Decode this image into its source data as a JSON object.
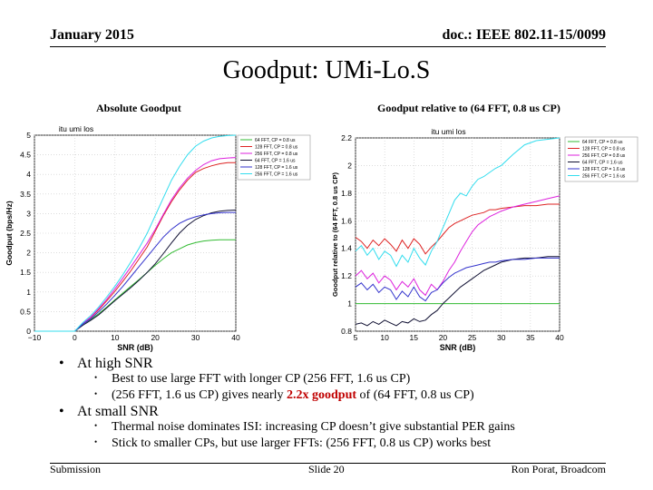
{
  "header": {
    "date": "January 2015",
    "doc": "doc.: IEEE 802.11-15/0099"
  },
  "title": "Goodput: UMi-Lo.S",
  "captions": {
    "left": "Absolute Goodput",
    "right": "Goodput relative to (64 FFT, 0.8 us CP)"
  },
  "bullets": [
    {
      "text": "At high SNR",
      "sub": [
        {
          "text": "Best to use large FFT with longer CP (256 FFT, 1.6 us CP)"
        },
        {
          "pre": "(256 FFT, 1.6 us CP) gives nearly ",
          "highlight": "2.2x goodput",
          "post": " of (64 FFT, 0.8 us CP)"
        }
      ]
    },
    {
      "text": "At small SNR",
      "sub": [
        {
          "text": "Thermal noise dominates ISI: increasing CP doesn’t give substantial PER gains"
        },
        {
          "text": "Stick to smaller CPs, but use larger FFTs: (256 FFT, 0.8 us CP) works best"
        }
      ]
    }
  ],
  "footer": {
    "left": "Submission",
    "center": "Slide 20",
    "right": "Ron Porat, Broadcom"
  },
  "chart_data": [
    {
      "type": "line",
      "title": "itu umi los",
      "xlabel": "SNR (dB)",
      "ylabel": "Goodput (bps/Hz)",
      "xlim": [
        -10,
        40
      ],
      "ylim": [
        0,
        5
      ],
      "xticks": [
        -10,
        0,
        10,
        20,
        30,
        40
      ],
      "xtick_labels": [
        "−10",
        "0",
        "10",
        "20",
        "30",
        "40"
      ],
      "yticks": [
        0,
        0.5,
        1,
        1.5,
        2,
        2.5,
        3,
        3.5,
        4,
        4.5,
        5
      ],
      "ytick_labels": [
        "0",
        "0.5",
        "1",
        "1.5",
        "2",
        "2.5",
        "3",
        "3.5",
        "4",
        "4.5",
        "5"
      ],
      "grid": true,
      "legend": "top-right",
      "x": [
        -10,
        -5,
        0,
        2,
        4,
        6,
        8,
        10,
        12,
        14,
        16,
        18,
        20,
        22,
        24,
        26,
        28,
        30,
        32,
        34,
        36,
        38,
        40
      ],
      "series": [
        {
          "name": "64 FFT, CP = 0.8 us",
          "color": "#33bb33",
          "values": [
            0,
            0,
            0,
            0.18,
            0.3,
            0.45,
            0.62,
            0.8,
            0.98,
            1.15,
            1.32,
            1.5,
            1.68,
            1.85,
            2.0,
            2.1,
            2.2,
            2.26,
            2.3,
            2.32,
            2.33,
            2.33,
            2.33
          ]
        },
        {
          "name": "128 FFT, CP = 0.8 us",
          "color": "#dd2222",
          "values": [
            0,
            0,
            0,
            0.2,
            0.35,
            0.55,
            0.78,
            1.02,
            1.28,
            1.55,
            1.85,
            2.15,
            2.55,
            2.95,
            3.3,
            3.6,
            3.85,
            4.05,
            4.15,
            4.22,
            4.27,
            4.3,
            4.3
          ]
        },
        {
          "name": "256 FFT, CP = 0.8 us",
          "color": "#dd22dd",
          "values": [
            0,
            0,
            0,
            0.2,
            0.36,
            0.58,
            0.82,
            1.08,
            1.36,
            1.65,
            1.95,
            2.25,
            2.6,
            2.98,
            3.35,
            3.65,
            3.9,
            4.1,
            4.25,
            4.35,
            4.4,
            4.42,
            4.43
          ]
        },
        {
          "name": "64 FFT, CP = 1.6 us",
          "color": "#111133",
          "values": [
            0,
            0,
            0,
            0.15,
            0.28,
            0.42,
            0.6,
            0.78,
            0.95,
            1.12,
            1.3,
            1.5,
            1.72,
            1.98,
            2.25,
            2.5,
            2.7,
            2.85,
            2.95,
            3.02,
            3.06,
            3.08,
            3.09
          ]
        },
        {
          "name": "128 FFT, CP = 1.6 us",
          "color": "#3333cc",
          "values": [
            0,
            0,
            0,
            0.18,
            0.32,
            0.5,
            0.7,
            0.92,
            1.15,
            1.4,
            1.65,
            1.9,
            2.15,
            2.4,
            2.6,
            2.75,
            2.85,
            2.92,
            2.97,
            3.0,
            3.02,
            3.03,
            3.03
          ]
        },
        {
          "name": "256 FFT, CP = 1.6 us",
          "color": "#33ddee",
          "values": [
            0,
            0,
            0,
            0.22,
            0.4,
            0.62,
            0.88,
            1.15,
            1.45,
            1.78,
            2.12,
            2.5,
            2.95,
            3.4,
            3.85,
            4.2,
            4.5,
            4.72,
            4.85,
            4.93,
            4.97,
            4.99,
            5.0
          ]
        }
      ]
    },
    {
      "type": "line",
      "title": "itu umi los",
      "xlabel": "SNR (dB)",
      "ylabel": "Goodput relative to (64 FFT, 0.8 us CP)",
      "xlim": [
        5,
        40
      ],
      "ylim": [
        0.8,
        2.2
      ],
      "xticks": [
        5,
        10,
        15,
        20,
        25,
        30,
        35,
        40
      ],
      "xtick_labels": [
        "5",
        "10",
        "15",
        "20",
        "25",
        "30",
        "35",
        "40"
      ],
      "yticks": [
        0.8,
        1,
        1.2,
        1.4,
        1.6,
        1.8,
        2,
        2.2
      ],
      "ytick_labels": [
        "0.8",
        "1",
        "1.2",
        "1.4",
        "1.6",
        "1.8",
        "2",
        "2.2"
      ],
      "grid": true,
      "legend": "top-right",
      "x": [
        5,
        6,
        7,
        8,
        9,
        10,
        11,
        12,
        13,
        14,
        15,
        16,
        17,
        18,
        19,
        20,
        21,
        22,
        23,
        24,
        25,
        26,
        27,
        28,
        29,
        30,
        32,
        34,
        36,
        38,
        40
      ],
      "series": [
        {
          "name": "64 FFT, CP = 0.8 us",
          "color": "#33bb33",
          "values": [
            1,
            1,
            1,
            1,
            1,
            1,
            1,
            1,
            1,
            1,
            1,
            1,
            1,
            1,
            1,
            1,
            1,
            1,
            1,
            1,
            1,
            1,
            1,
            1,
            1,
            1,
            1,
            1,
            1,
            1,
            1
          ]
        },
        {
          "name": "128 FFT, CP = 0.8 us",
          "color": "#dd2222",
          "values": [
            1.48,
            1.45,
            1.4,
            1.46,
            1.42,
            1.47,
            1.43,
            1.38,
            1.46,
            1.4,
            1.47,
            1.43,
            1.36,
            1.41,
            1.45,
            1.5,
            1.55,
            1.58,
            1.6,
            1.62,
            1.64,
            1.65,
            1.66,
            1.68,
            1.68,
            1.69,
            1.7,
            1.71,
            1.71,
            1.72,
            1.72
          ]
        },
        {
          "name": "256 FFT, CP = 0.8 us",
          "color": "#dd22dd",
          "values": [
            1.2,
            1.24,
            1.18,
            1.22,
            1.15,
            1.2,
            1.17,
            1.1,
            1.16,
            1.12,
            1.18,
            1.1,
            1.06,
            1.14,
            1.1,
            1.16,
            1.24,
            1.3,
            1.38,
            1.45,
            1.52,
            1.57,
            1.6,
            1.63,
            1.65,
            1.67,
            1.7,
            1.72,
            1.74,
            1.76,
            1.78
          ]
        },
        {
          "name": "64 FFT, CP = 1.6 us",
          "color": "#111133",
          "values": [
            0.85,
            0.86,
            0.84,
            0.87,
            0.85,
            0.88,
            0.86,
            0.84,
            0.87,
            0.86,
            0.89,
            0.87,
            0.88,
            0.92,
            0.95,
            1.0,
            1.04,
            1.08,
            1.12,
            1.15,
            1.18,
            1.21,
            1.24,
            1.26,
            1.28,
            1.3,
            1.32,
            1.33,
            1.33,
            1.34,
            1.34
          ]
        },
        {
          "name": "128 FFT, CP = 1.6 us",
          "color": "#3333cc",
          "values": [
            1.12,
            1.15,
            1.1,
            1.14,
            1.08,
            1.12,
            1.1,
            1.03,
            1.09,
            1.05,
            1.12,
            1.05,
            1.02,
            1.08,
            1.1,
            1.15,
            1.19,
            1.22,
            1.24,
            1.26,
            1.27,
            1.28,
            1.29,
            1.3,
            1.3,
            1.31,
            1.32,
            1.32,
            1.33,
            1.33,
            1.33
          ]
        },
        {
          "name": "256 FFT, CP = 1.6 us",
          "color": "#33ddee",
          "values": [
            1.38,
            1.42,
            1.35,
            1.4,
            1.32,
            1.38,
            1.35,
            1.27,
            1.35,
            1.3,
            1.4,
            1.33,
            1.28,
            1.38,
            1.45,
            1.55,
            1.65,
            1.75,
            1.8,
            1.78,
            1.85,
            1.9,
            1.92,
            1.95,
            1.98,
            2.0,
            2.08,
            2.15,
            2.18,
            2.19,
            2.2
          ]
        }
      ]
    }
  ]
}
